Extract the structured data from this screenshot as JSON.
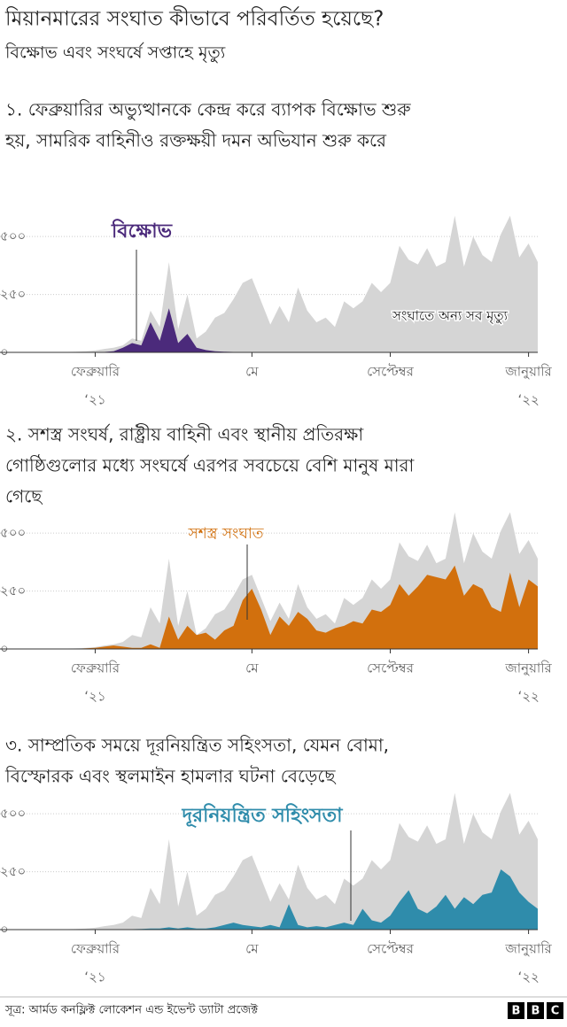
{
  "title": "মিয়ানমারের সংঘাত কীভাবে পরিবর্তিত হয়েছে?",
  "subtitle": "বিক্ষোভ এবং সংঘর্ষে সপ্তাহে মৃত্যু",
  "source": "সূত্র: আর্মড কনফ্লিক্ট লোকেশন এন্ড ইভেন্ট ড্যাটা প্রজেক্ট",
  "logo": [
    "B",
    "B",
    "C"
  ],
  "chart_data": [
    {
      "type": "area",
      "heading_lines": [
        "১. ফেব্রুয়ারির অভ্যুত্থানকে কেন্দ্র করে ব্যাপক বিক্ষোভ শুরু",
        "হয়, সামরিক বাহিনীও রক্তক্ষয়ী দমন অভিযান শুরু করে"
      ],
      "categories": [
        null,
        null,
        null,
        null,
        null,
        null,
        "ফেব্রুয়ারি",
        null,
        null,
        null,
        null,
        null,
        null,
        null,
        null,
        null,
        null,
        null,
        null,
        null,
        null,
        null,
        null,
        "মে",
        null,
        null,
        null,
        null,
        null,
        null,
        null,
        null,
        null,
        null,
        null,
        null,
        null,
        null,
        "সেপ্টেম্বর",
        null,
        null,
        null,
        null,
        null,
        null,
        null,
        null,
        null,
        null,
        null,
        null,
        null,
        null,
        "জানুয়ারি",
        null
      ],
      "year_labels": [
        null,
        null,
        null,
        null,
        null,
        null,
        "‘২১",
        null,
        null,
        null,
        null,
        null,
        null,
        null,
        null,
        null,
        null,
        null,
        null,
        null,
        null,
        null,
        null,
        null,
        null,
        null,
        null,
        null,
        null,
        null,
        null,
        null,
        null,
        null,
        null,
        null,
        null,
        null,
        null,
        null,
        null,
        null,
        null,
        null,
        null,
        null,
        null,
        null,
        null,
        null,
        null,
        null,
        null,
        "‘২২",
        null
      ],
      "series": [
        {
          "name": "সংঘাতে অন্য সব মৃত্যু",
          "color": "#d5d5d5",
          "values": [
            0,
            0,
            0,
            2,
            3,
            5,
            8,
            15,
            20,
            30,
            60,
            50,
            180,
            110,
            390,
            100,
            250,
            60,
            90,
            150,
            170,
            230,
            300,
            320,
            220,
            120,
            200,
            130,
            280,
            180,
            130,
            150,
            110,
            220,
            190,
            220,
            300,
            260,
            300,
            460,
            400,
            380,
            450,
            370,
            390,
            590,
            370,
            500,
            420,
            390,
            510,
            590,
            410,
            470,
            390
          ]
        },
        {
          "name": "বিক্ষোভ",
          "color": "#4b2a7b",
          "values": [
            0,
            0,
            0,
            0,
            0,
            0,
            0,
            2,
            5,
            20,
            40,
            30,
            130,
            50,
            190,
            40,
            80,
            20,
            10,
            5,
            3,
            2,
            1,
            0,
            0,
            0,
            0,
            0,
            0,
            0,
            0,
            0,
            0,
            0,
            0,
            0,
            0,
            0,
            0,
            0,
            0,
            0,
            0,
            0,
            0,
            0,
            0,
            0,
            0,
            0,
            0,
            1,
            0,
            0,
            0
          ]
        }
      ],
      "ylim": [
        0,
        600
      ],
      "yticks": [
        {
          "value": 0,
          "label": "০"
        },
        {
          "value": 250,
          "label": "২৫০"
        },
        {
          "value": 500,
          "label": "৫০০"
        }
      ],
      "grid": true
    },
    {
      "type": "area",
      "heading_lines": [
        "২. সশস্ত্র সংঘর্ষ, রাষ্ট্রীয় বাহিনী এবং স্থানীয় প্রতিরক্ষা",
        "গোষ্ঠিগুলোর মধ্যে সংঘর্ষে এরপর সবচেয়ে বেশি মানুষ মারা",
        "গেছে"
      ],
      "categories": [
        null,
        null,
        null,
        null,
        null,
        null,
        "ফেব্রুয়ারি",
        null,
        null,
        null,
        null,
        null,
        null,
        null,
        null,
        null,
        null,
        null,
        null,
        null,
        null,
        null,
        null,
        "মে",
        null,
        null,
        null,
        null,
        null,
        null,
        null,
        null,
        null,
        null,
        null,
        null,
        null,
        null,
        "সেপ্টেম্বর",
        null,
        null,
        null,
        null,
        null,
        null,
        null,
        null,
        null,
        null,
        null,
        null,
        null,
        null,
        "জানুয়ারি",
        null
      ],
      "year_labels": [
        null,
        null,
        null,
        null,
        null,
        null,
        "‘২১",
        null,
        null,
        null,
        null,
        null,
        null,
        null,
        null,
        null,
        null,
        null,
        null,
        null,
        null,
        null,
        null,
        null,
        null,
        null,
        null,
        null,
        null,
        null,
        null,
        null,
        null,
        null,
        null,
        null,
        null,
        null,
        null,
        null,
        null,
        null,
        null,
        null,
        null,
        null,
        null,
        null,
        null,
        null,
        null,
        null,
        null,
        "‘২২",
        null
      ],
      "series": [
        {
          "color": "#d5d5d5",
          "values": [
            0,
            0,
            0,
            2,
            3,
            5,
            8,
            15,
            20,
            30,
            60,
            50,
            180,
            110,
            390,
            100,
            250,
            60,
            90,
            150,
            170,
            230,
            300,
            320,
            220,
            120,
            200,
            130,
            280,
            180,
            130,
            150,
            110,
            220,
            190,
            220,
            300,
            260,
            300,
            460,
            400,
            380,
            450,
            370,
            390,
            590,
            370,
            500,
            420,
            390,
            510,
            590,
            410,
            470,
            390
          ]
        },
        {
          "name": "সশস্ত্র সংঘাত",
          "color": "#d2700d",
          "values": [
            0,
            0,
            0,
            0,
            1,
            3,
            5,
            10,
            15,
            10,
            5,
            5,
            20,
            5,
            140,
            40,
            100,
            60,
            70,
            40,
            80,
            100,
            210,
            260,
            170,
            60,
            140,
            100,
            160,
            130,
            80,
            70,
            90,
            100,
            120,
            110,
            170,
            160,
            190,
            280,
            230,
            270,
            320,
            310,
            300,
            360,
            230,
            280,
            260,
            180,
            160,
            330,
            180,
            300,
            270
          ]
        }
      ],
      "ylim": [
        0,
        600
      ],
      "yticks": [
        {
          "value": 0,
          "label": "০"
        },
        {
          "value": 250,
          "label": "২৫০"
        },
        {
          "value": 500,
          "label": "৫০০"
        }
      ],
      "grid": true
    },
    {
      "type": "area",
      "heading_lines": [
        "৩. সাম্প্রতিক সময়ে দূরনিয়ন্ত্রিত সহিংসতা, যেমন বোমা,",
        "বিস্ফোরক এবং স্থলমাইন হামলার ঘটনা বেড়েছে"
      ],
      "categories": [
        null,
        null,
        null,
        null,
        null,
        null,
        "ফেব্রুয়ারি",
        null,
        null,
        null,
        null,
        null,
        null,
        null,
        null,
        null,
        null,
        null,
        null,
        null,
        null,
        null,
        null,
        "মে",
        null,
        null,
        null,
        null,
        null,
        null,
        null,
        null,
        null,
        null,
        null,
        null,
        null,
        null,
        "সেপ্টেম্বর",
        null,
        null,
        null,
        null,
        null,
        null,
        null,
        null,
        null,
        null,
        null,
        null,
        null,
        null,
        "জানুয়ারি",
        null
      ],
      "year_labels": [
        null,
        null,
        null,
        null,
        null,
        null,
        "‘২১",
        null,
        null,
        null,
        null,
        null,
        null,
        null,
        null,
        null,
        null,
        null,
        null,
        null,
        null,
        null,
        null,
        null,
        null,
        null,
        null,
        null,
        null,
        null,
        null,
        null,
        null,
        null,
        null,
        null,
        null,
        null,
        null,
        null,
        null,
        null,
        null,
        null,
        null,
        null,
        null,
        null,
        null,
        null,
        null,
        null,
        null,
        "‘২২",
        null
      ],
      "series": [
        {
          "color": "#d5d5d5",
          "values": [
            0,
            0,
            0,
            2,
            3,
            5,
            8,
            15,
            20,
            30,
            60,
            50,
            180,
            110,
            390,
            100,
            250,
            60,
            90,
            150,
            170,
            230,
            300,
            320,
            220,
            120,
            200,
            130,
            280,
            180,
            130,
            150,
            110,
            220,
            190,
            220,
            300,
            260,
            300,
            460,
            400,
            380,
            450,
            370,
            390,
            590,
            370,
            500,
            420,
            390,
            510,
            590,
            410,
            470,
            390
          ]
        },
        {
          "name": "দূরনিয়ন্ত্রিত সহিংসতা",
          "color": "#2f8cab",
          "values": [
            0,
            0,
            0,
            0,
            0,
            0,
            1,
            2,
            2,
            2,
            2,
            3,
            5,
            5,
            10,
            5,
            10,
            5,
            5,
            10,
            20,
            30,
            20,
            15,
            10,
            20,
            10,
            110,
            20,
            10,
            15,
            10,
            20,
            30,
            20,
            90,
            40,
            30,
            60,
            120,
            170,
            90,
            70,
            100,
            150,
            90,
            140,
            110,
            150,
            160,
            260,
            230,
            160,
            120,
            90
          ]
        }
      ],
      "ylim": [
        0,
        600
      ],
      "yticks": [
        {
          "value": 0,
          "label": "০"
        },
        {
          "value": 250,
          "label": "২৫০"
        },
        {
          "value": 500,
          "label": "৫০০"
        }
      ],
      "grid": true
    }
  ]
}
